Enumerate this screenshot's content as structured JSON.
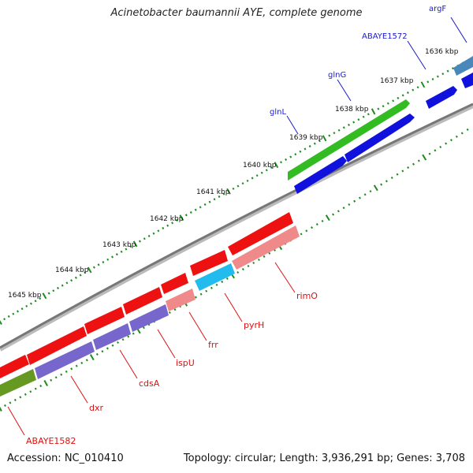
{
  "header": {
    "title": "Acinetobacter baumannii AYE, complete genome"
  },
  "footer": {
    "accession": "Accession: NC_010410",
    "summary": "Topology: circular; Length: 3,936,291 bp; Genes: 3,708"
  },
  "scale_ticks": [
    "1636 kbp",
    "1637 kbp",
    "1638 kbp",
    "1639 kbp",
    "1640 kbp",
    "1641 kbp",
    "1642 kbp",
    "1643 kbp",
    "1644 kbp",
    "1645 kbp"
  ],
  "top_strand_labels": [
    "argF",
    "ABAYE1572",
    "glnG",
    "glnL"
  ],
  "bottom_strand_labels": [
    "rimO",
    "pyrH",
    "frr",
    "ispU",
    "cdsA",
    "dxr",
    "ABAYE1582"
  ],
  "colors": {
    "backbone": "#777777",
    "tick_green": "#1f8a1f",
    "red_gene": "#ee1111",
    "pink_gene": "#f08a8a",
    "blue_gene": "#1111dd",
    "cyan_gene": "#22bbee",
    "purple_gene": "#7766cc",
    "green_gene": "#33bb22",
    "olive_gene": "#669922",
    "steel_gene": "#4a88bb",
    "top_label": "#1a1acc",
    "bottom_label": "#dd1111"
  }
}
